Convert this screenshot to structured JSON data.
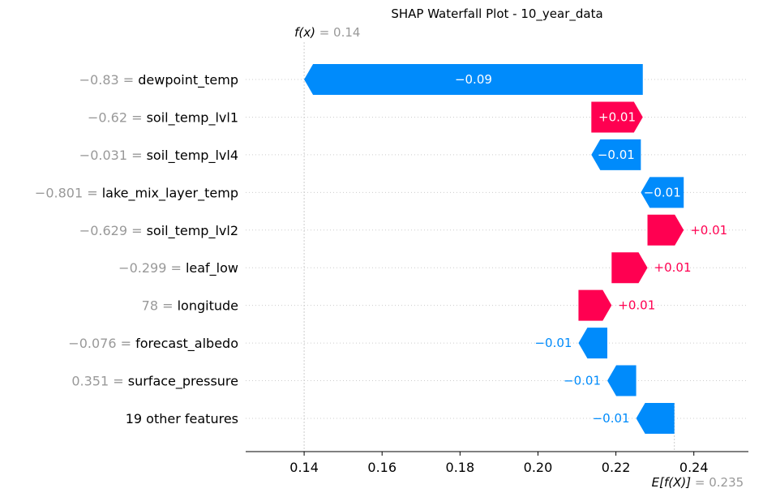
{
  "colors": {
    "positive": "#ff0051",
    "negative": "#008bfb",
    "neutral": "#999999",
    "grid": "#cccccc"
  },
  "chart_data": {
    "type": "waterfall",
    "title": "SHAP Waterfall Plot - 10_year_data",
    "fx": {
      "label": "f(x)",
      "equals": " = ",
      "value": "0.14",
      "numeric": 0.14
    },
    "efx": {
      "label": "E[f(X)]",
      "equals": " = ",
      "value": "0.235",
      "numeric": 0.235
    },
    "xlim": [
      0.125,
      0.254
    ],
    "xticks": [
      {
        "value": 0.14,
        "label": "0.14"
      },
      {
        "value": 0.16,
        "label": "0.16"
      },
      {
        "value": 0.18,
        "label": "0.18"
      },
      {
        "value": 0.2,
        "label": "0.20"
      },
      {
        "value": 0.22,
        "label": "0.22"
      },
      {
        "value": 0.24,
        "label": "0.24"
      }
    ],
    "features": [
      {
        "value_text": "−0.83 = ",
        "name": "dewpoint_temp",
        "start": 0.2269,
        "end": 0.14,
        "label": "−0.09",
        "label_pos": "inside"
      },
      {
        "value_text": "−0.62 = ",
        "name": "soil_temp_lvl1",
        "start": 0.2137,
        "end": 0.2269,
        "label": "+0.01",
        "label_pos": "inside"
      },
      {
        "value_text": "−0.031 = ",
        "name": "soil_temp_lvl4",
        "start": 0.2264,
        "end": 0.2137,
        "label": "−0.01",
        "label_pos": "inside"
      },
      {
        "value_text": "−0.801 = ",
        "name": "lake_mix_layer_temp",
        "start": 0.2374,
        "end": 0.2264,
        "label": "−0.01",
        "label_pos": "inside"
      },
      {
        "value_text": "−0.629 = ",
        "name": "soil_temp_lvl2",
        "start": 0.2281,
        "end": 0.2374,
        "label": "+0.01",
        "label_pos": "outside"
      },
      {
        "value_text": "−0.299 = ",
        "name": "leaf_low",
        "start": 0.2189,
        "end": 0.2281,
        "label": "+0.01",
        "label_pos": "outside"
      },
      {
        "value_text": "78 = ",
        "name": "longitude",
        "start": 0.2104,
        "end": 0.2189,
        "label": "+0.01",
        "label_pos": "outside"
      },
      {
        "value_text": "−0.076 = ",
        "name": "forecast_albedo",
        "start": 0.2178,
        "end": 0.2104,
        "label": "−0.01",
        "label_pos": "outside"
      },
      {
        "value_text": "0.351 = ",
        "name": "surface_pressure",
        "start": 0.2252,
        "end": 0.2178,
        "label": "−0.01",
        "label_pos": "outside"
      },
      {
        "value_text": "",
        "name": "19 other features",
        "start": 0.235,
        "end": 0.2252,
        "label": "−0.01",
        "label_pos": "outside"
      }
    ]
  }
}
